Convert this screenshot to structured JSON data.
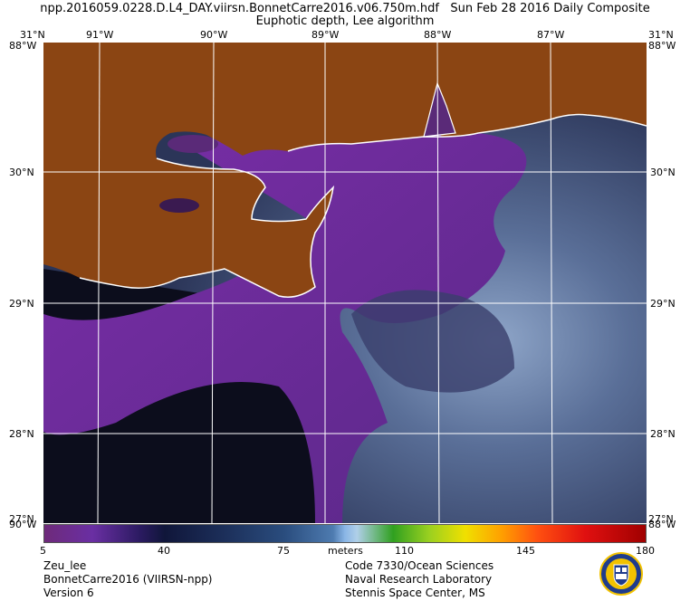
{
  "header": {
    "filename": "npp.2016059.0228.D.L4_DAY.viirsn.BonnetCarre2016.v06.750m.hdf",
    "date": "Sun Feb 28 2016 Daily Composite",
    "subtitle": "Euphotic depth, Lee algorithm"
  },
  "axes": {
    "longitudes": [
      "91°W",
      "90°W",
      "89°W",
      "88°W",
      "87°W"
    ],
    "lat_top": "31°N",
    "lat_bottom": "27°N",
    "latitudes": [
      "30°N",
      "29°N",
      "28°N"
    ],
    "corner_top_left": "88°W",
    "corner_top_right": "88°W",
    "corner_bottom_left": "90°W",
    "corner_bottom_right": "88°W"
  },
  "colorbar": {
    "ticks": [
      "5",
      "40",
      "75",
      "110",
      "145",
      "180"
    ],
    "unit": "meters",
    "min": 5,
    "max": 180
  },
  "footer": {
    "left": [
      "Zeu_lee",
      "BonnetCarre2016 (VIIRSN-npp)",
      "Version 6"
    ],
    "center": [
      "Code 7330/Ocean Sciences",
      "Naval Research Laboratory",
      "Stennis Space Center, MS"
    ]
  },
  "colors": {
    "land": "#8b4513",
    "coast": "#ffffff",
    "water_shallow": "#6a2d8f",
    "water_deep": "#3a4f7a"
  }
}
